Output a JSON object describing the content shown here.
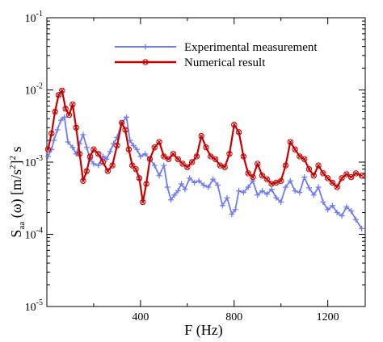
{
  "chart_data": {
    "type": "line",
    "xlabel": "F (Hz)",
    "ylabel_parts": {
      "main": "S",
      "sub": "aa",
      "rest": " (ω) [m/s",
      "sup1": "2",
      "mid": "]",
      "sup2": "2",
      "end": " s"
    },
    "x_ticks": [
      400,
      800,
      1200
    ],
    "x_tick_labels": [
      "400",
      "800",
      "1200"
    ],
    "xlim": [
      0,
      1360
    ],
    "y_scale": "log",
    "ylim": [
      1e-05,
      0.1
    ],
    "y_ticks": [
      1e-05,
      0.0001,
      0.001,
      0.01,
      0.1
    ],
    "y_tick_labels": [
      {
        "base": "10",
        "exp": "-5"
      },
      {
        "base": "10",
        "exp": "-4"
      },
      {
        "base": "10",
        "exp": "-3"
      },
      {
        "base": "10",
        "exp": "-2"
      },
      {
        "base": "10",
        "exp": "-1"
      }
    ],
    "grid": false,
    "legend_position": "top-right",
    "series": [
      {
        "name": "Experimental measurement",
        "color": "#6f7cf0",
        "marker": "plus",
        "x": [
          5,
          20,
          30,
          45,
          60,
          75,
          90,
          110,
          125,
          140,
          155,
          170,
          185,
          200,
          220,
          240,
          255,
          270,
          285,
          300,
          320,
          340,
          355,
          370,
          385,
          400,
          420,
          440,
          460,
          480,
          500,
          515,
          530,
          545,
          560,
          575,
          590,
          610,
          630,
          650,
          670,
          690,
          710,
          730,
          750,
          770,
          790,
          805,
          820,
          840,
          860,
          880,
          900,
          920,
          940,
          960,
          980,
          1000,
          1020,
          1040,
          1060,
          1080,
          1100,
          1120,
          1140,
          1160,
          1180,
          1200,
          1220,
          1240,
          1260,
          1280,
          1300,
          1320,
          1345
        ],
        "y": [
          0.0012,
          0.0015,
          0.002,
          0.0028,
          0.0038,
          0.0042,
          0.0019,
          0.0016,
          0.0013,
          0.0018,
          0.0024,
          0.0016,
          0.0011,
          0.00095,
          0.0009,
          0.0012,
          0.0011,
          0.0014,
          0.0018,
          0.0022,
          0.0035,
          0.0042,
          0.002,
          0.0017,
          0.0015,
          0.0012,
          0.0013,
          0.0011,
          0.0009,
          0.00065,
          0.0009,
          0.00045,
          0.0003,
          0.00035,
          0.0004,
          0.0005,
          0.00042,
          0.0006,
          0.00052,
          0.00055,
          0.00048,
          0.00045,
          0.00058,
          0.00048,
          0.00025,
          0.00032,
          0.00019,
          0.00022,
          0.0004,
          0.00038,
          0.00045,
          0.00055,
          0.00035,
          0.0004,
          0.00036,
          0.00042,
          0.00032,
          0.00028,
          0.00045,
          0.00055,
          0.0004,
          0.00038,
          0.00062,
          0.00044,
          0.00035,
          0.00045,
          0.00028,
          0.00022,
          0.00025,
          0.0002,
          0.00018,
          0.00024,
          0.00021,
          0.00016,
          0.00012
        ]
      },
      {
        "name": "Numerical result",
        "color": "#c80000",
        "marker": "circle-x",
        "x": [
          5,
          20,
          35,
          50,
          65,
          80,
          95,
          110,
          125,
          140,
          155,
          170,
          185,
          200,
          220,
          240,
          260,
          280,
          300,
          320,
          335,
          350,
          365,
          380,
          395,
          410,
          425,
          440,
          460,
          480,
          500,
          520,
          540,
          560,
          580,
          600,
          620,
          640,
          660,
          680,
          700,
          720,
          740,
          760,
          780,
          800,
          820,
          840,
          860,
          880,
          900,
          920,
          940,
          960,
          980,
          1000,
          1020,
          1040,
          1060,
          1080,
          1100,
          1120,
          1140,
          1160,
          1180,
          1200,
          1220,
          1240,
          1260,
          1280,
          1300,
          1320,
          1345
        ],
        "y": [
          0.0015,
          0.0025,
          0.005,
          0.0085,
          0.0098,
          0.0055,
          0.0045,
          0.0063,
          0.003,
          0.0013,
          0.00055,
          0.00075,
          0.0012,
          0.0015,
          0.0013,
          0.001,
          0.00075,
          0.0009,
          0.0017,
          0.0035,
          0.0028,
          0.0015,
          0.0009,
          0.0008,
          0.0006,
          0.00028,
          0.0005,
          0.0011,
          0.0016,
          0.0019,
          0.0012,
          0.0011,
          0.0013,
          0.0011,
          0.00095,
          0.00085,
          0.001,
          0.0012,
          0.0023,
          0.0016,
          0.0012,
          0.0011,
          0.0009,
          0.00085,
          0.0013,
          0.0033,
          0.0026,
          0.0012,
          0.0007,
          0.00062,
          0.00095,
          0.00065,
          0.00058,
          0.0005,
          0.00052,
          0.00055,
          0.0009,
          0.0019,
          0.0015,
          0.0012,
          0.0011,
          0.0008,
          0.00065,
          0.0009,
          0.0007,
          0.0006,
          0.00052,
          0.00045,
          0.0006,
          0.00068,
          0.00062,
          0.0007,
          0.00065
        ]
      }
    ]
  }
}
